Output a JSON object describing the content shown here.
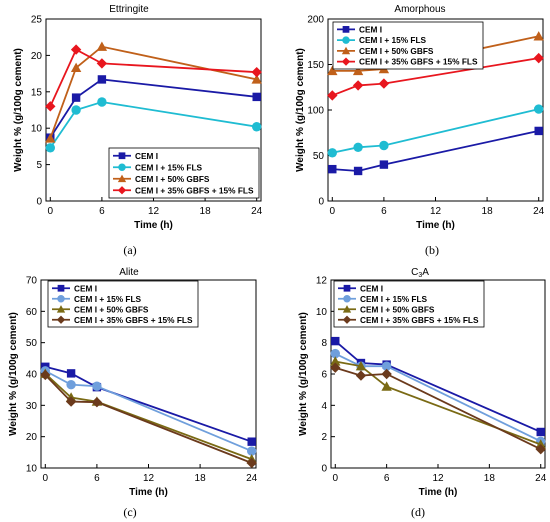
{
  "charts": [
    {
      "type": "line",
      "title": "Ettringite",
      "title_sub": "",
      "caption": "(a)",
      "xlabel": "Time (h)",
      "ylabel": "Weight % (g/100g cement)",
      "xlim": [
        -0.5,
        24.5
      ],
      "ylim": [
        0,
        25
      ],
      "xticks": [
        0,
        6,
        12,
        18,
        24
      ],
      "yticks": [
        0,
        5,
        10,
        15,
        20,
        25
      ],
      "legend_position": "lower-right",
      "series": [
        {
          "name": "CEM I",
          "color": "#1a1aa6",
          "marker": "square",
          "x": [
            0,
            3,
            6,
            24
          ],
          "y": [
            8.7,
            14.2,
            16.7,
            14.3
          ]
        },
        {
          "name": "CEM I + 15% FLS",
          "color": "#1fbcd2",
          "marker": "circle",
          "x": [
            0,
            3,
            6,
            24
          ],
          "y": [
            7.3,
            12.5,
            13.6,
            10.2
          ]
        },
        {
          "name": "CEM I + 50% GBFS",
          "color": "#c0601a",
          "marker": "triangle",
          "x": [
            0,
            3,
            6,
            24
          ],
          "y": [
            8.6,
            18.3,
            21.2,
            16.7
          ]
        },
        {
          "name": "CEM I + 35% GBFS + 15% FLS",
          "color": "#e8161e",
          "marker": "diamond",
          "x": [
            0,
            3,
            6,
            24
          ],
          "y": [
            13.0,
            20.8,
            18.9,
            17.7
          ]
        }
      ]
    },
    {
      "type": "line",
      "title": "Amorphous",
      "title_sub": "",
      "caption": "(b)",
      "xlabel": "Time (h)",
      "ylabel": "Weight % (g/100g cement)",
      "xlim": [
        -0.5,
        24.5
      ],
      "ylim": [
        0,
        200
      ],
      "xticks": [
        0,
        6,
        12,
        18,
        24
      ],
      "yticks": [
        0,
        50,
        100,
        150,
        200
      ],
      "legend_position": "top-left",
      "series": [
        {
          "name": "CEM I",
          "color": "#1a1aa6",
          "marker": "square",
          "x": [
            0,
            3,
            6,
            24
          ],
          "y": [
            35,
            33,
            40,
            77
          ]
        },
        {
          "name": "CEM I + 15% FLS",
          "color": "#1fbcd2",
          "marker": "circle",
          "x": [
            0,
            3,
            6,
            24
          ],
          "y": [
            53,
            59,
            61,
            101
          ]
        },
        {
          "name": "CEM I + 50% GBFS",
          "color": "#c0601a",
          "marker": "triangle",
          "x": [
            0,
            3,
            6,
            24
          ],
          "y": [
            143,
            143,
            145,
            181
          ]
        },
        {
          "name": "CEM I + 35% GBFS + 15% FLS",
          "color": "#e8161e",
          "marker": "diamond",
          "x": [
            0,
            3,
            6,
            24
          ],
          "y": [
            116,
            127,
            129,
            157
          ]
        }
      ]
    },
    {
      "type": "line",
      "title": "Alite",
      "title_sub": "",
      "caption": "(c)",
      "xlabel": "Time (h)",
      "ylabel": "Weight % (g/100g cement)",
      "xlim": [
        -0.5,
        24.5
      ],
      "ylim": [
        10,
        70
      ],
      "xticks": [
        0,
        6,
        12,
        18,
        24
      ],
      "yticks": [
        10,
        20,
        30,
        40,
        50,
        60,
        70
      ],
      "legend_position": "top-left",
      "series": [
        {
          "name": "CEM I",
          "color": "#1a1aa6",
          "marker": "square",
          "x": [
            0,
            3,
            6,
            24
          ],
          "y": [
            42.3,
            40.2,
            35.8,
            18.4
          ]
        },
        {
          "name": "CEM I + 15% FLS",
          "color": "#6f9fdc",
          "marker": "circle",
          "x": [
            0,
            3,
            6,
            24
          ],
          "y": [
            41.0,
            36.6,
            36.1,
            15.4
          ]
        },
        {
          "name": "CEM I + 50% GBFS",
          "color": "#7a6a14",
          "marker": "triangle",
          "x": [
            0,
            3,
            6,
            24
          ],
          "y": [
            40.1,
            32.5,
            31.2,
            12.8
          ]
        },
        {
          "name": "CEM I + 35% GBFS + 15% FLS",
          "color": "#6b3a1c",
          "marker": "diamond",
          "x": [
            0,
            3,
            6,
            24
          ],
          "y": [
            39.7,
            31.2,
            31.0,
            11.6
          ]
        }
      ]
    },
    {
      "type": "line",
      "title": "C",
      "title_sub": "3",
      "title_tail": "A",
      "caption": "(d)",
      "xlabel": "Time (h)",
      "ylabel": "Weight % (g/100g cement)",
      "xlim": [
        -0.5,
        24.5
      ],
      "ylim": [
        0,
        12
      ],
      "xticks": [
        0,
        6,
        12,
        18,
        24
      ],
      "yticks": [
        0,
        2,
        4,
        6,
        8,
        10,
        12
      ],
      "legend_position": "top-left",
      "series": [
        {
          "name": "CEM I",
          "color": "#1a1aa6",
          "marker": "square",
          "x": [
            0,
            3,
            6,
            24
          ],
          "y": [
            8.1,
            6.7,
            6.6,
            2.3
          ]
        },
        {
          "name": "CEM I + 15% FLS",
          "color": "#6f9fdc",
          "marker": "circle",
          "x": [
            0,
            3,
            6,
            24
          ],
          "y": [
            7.3,
            6.5,
            6.5,
            1.7
          ]
        },
        {
          "name": "CEM I + 50% GBFS",
          "color": "#7a6a14",
          "marker": "triangle",
          "x": [
            0,
            3,
            6,
            24
          ],
          "y": [
            6.8,
            6.5,
            5.2,
            1.5
          ]
        },
        {
          "name": "CEM I + 35% GBFS + 15% FLS",
          "color": "#6b3a1c",
          "marker": "diamond",
          "x": [
            0,
            3,
            6,
            24
          ],
          "y": [
            6.4,
            5.9,
            6.0,
            1.2
          ]
        }
      ]
    }
  ]
}
